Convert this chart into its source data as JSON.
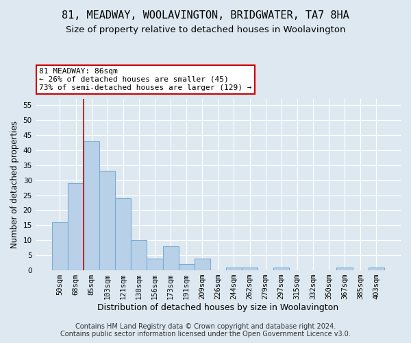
{
  "title": "81, MEADWAY, WOOLAVINGTON, BRIDGWATER, TA7 8HA",
  "subtitle": "Size of property relative to detached houses in Woolavington",
  "xlabel": "Distribution of detached houses by size in Woolavington",
  "ylabel": "Number of detached properties",
  "categories": [
    "50sqm",
    "68sqm",
    "85sqm",
    "103sqm",
    "121sqm",
    "138sqm",
    "156sqm",
    "173sqm",
    "191sqm",
    "209sqm",
    "226sqm",
    "244sqm",
    "262sqm",
    "279sqm",
    "297sqm",
    "315sqm",
    "332sqm",
    "350sqm",
    "367sqm",
    "385sqm",
    "403sqm"
  ],
  "values": [
    16,
    29,
    43,
    33,
    24,
    10,
    4,
    8,
    2,
    4,
    0,
    1,
    1,
    0,
    1,
    0,
    0,
    0,
    1,
    0,
    1
  ],
  "bar_color": "#b8d0e8",
  "bar_edge_color": "#7aaed0",
  "bar_width": 1.0,
  "property_line_x": 1.5,
  "annotation_text": "81 MEADWAY: 86sqm\n← 26% of detached houses are smaller (45)\n73% of semi-detached houses are larger (129) →",
  "annotation_box_color": "#ffffff",
  "annotation_box_edge": "#cc0000",
  "property_line_color": "#cc0000",
  "ylim": [
    0,
    57
  ],
  "yticks": [
    0,
    5,
    10,
    15,
    20,
    25,
    30,
    35,
    40,
    45,
    50,
    55
  ],
  "background_color": "#dde8f0",
  "plot_background_color": "#dde8f0",
  "grid_color": "#ffffff",
  "footer_line1": "Contains HM Land Registry data © Crown copyright and database right 2024.",
  "footer_line2": "Contains public sector information licensed under the Open Government Licence v3.0.",
  "title_fontsize": 11,
  "subtitle_fontsize": 9.5,
  "xlabel_fontsize": 9,
  "ylabel_fontsize": 8.5,
  "tick_fontsize": 7.5,
  "annotation_fontsize": 8,
  "footer_fontsize": 7
}
